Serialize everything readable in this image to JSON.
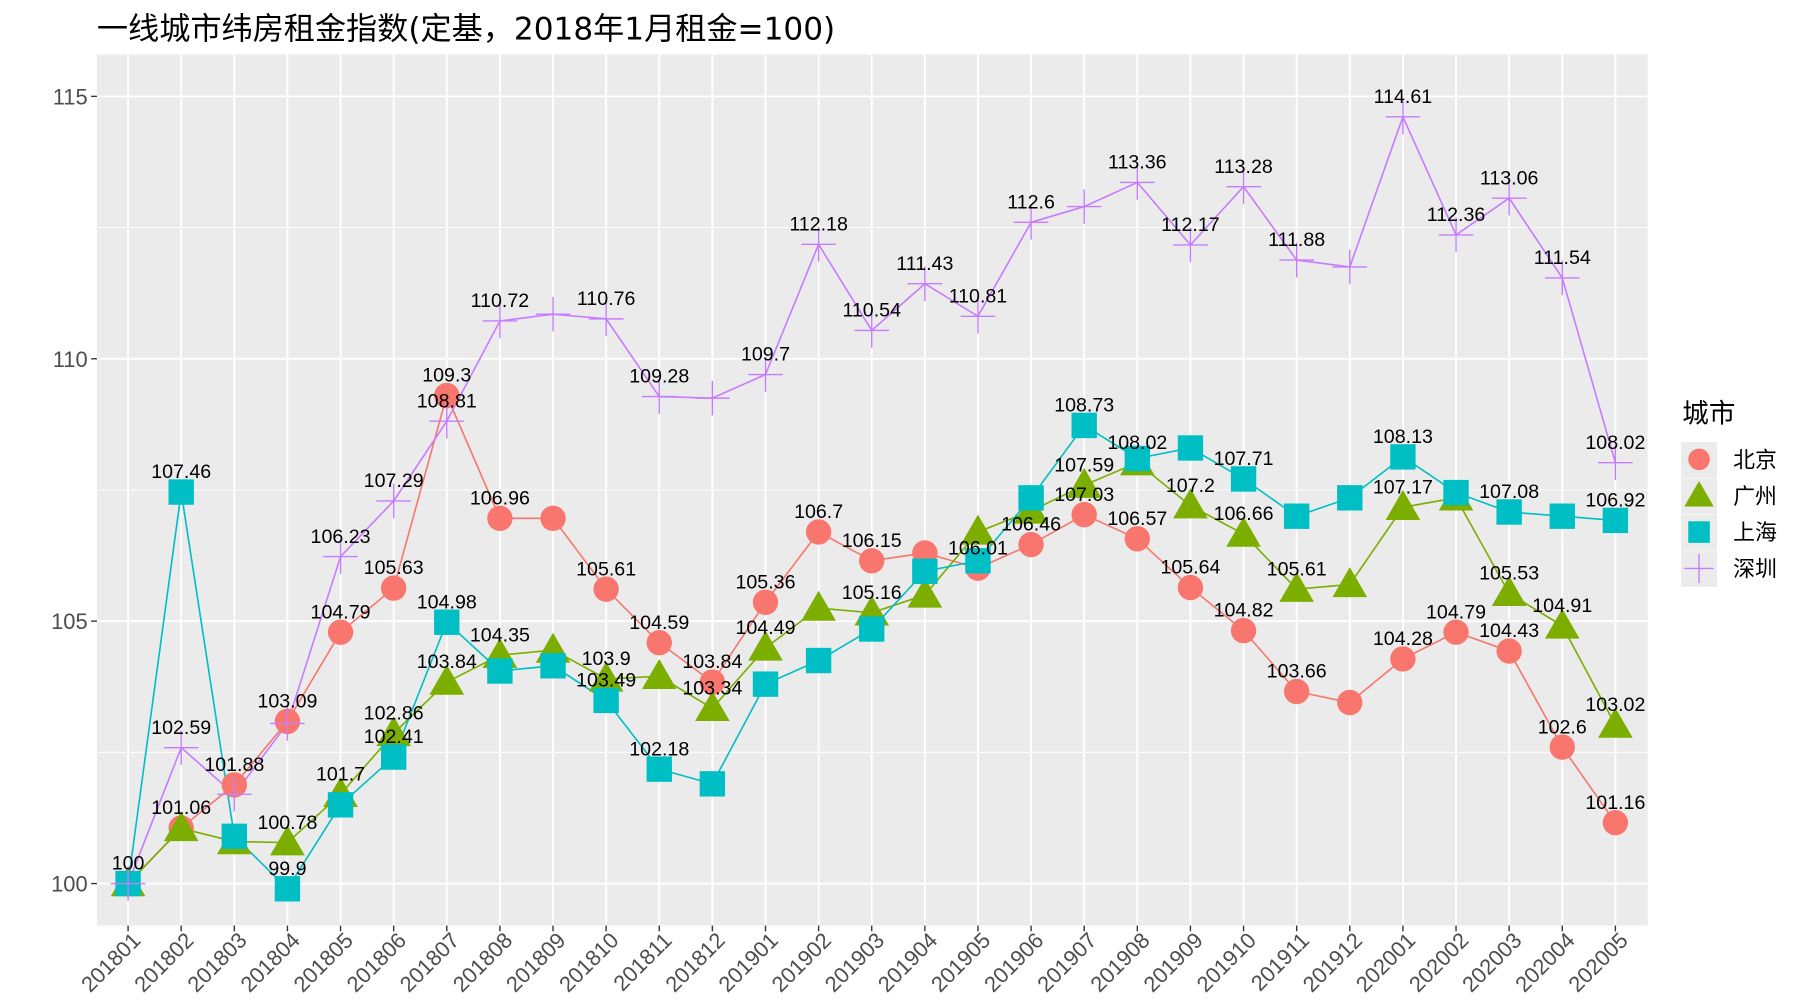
{
  "chart_data": {
    "type": "line",
    "title": "一线城市纬房租金指数(定基，2018年1月租金=100)",
    "xlabel": "",
    "ylabel": "",
    "ylim": [
      99.2,
      115.8
    ],
    "yticks": [
      100,
      105,
      110,
      115
    ],
    "grid": true,
    "legend": {
      "title": "城市",
      "position": "right"
    },
    "categories": [
      "201801",
      "201802",
      "201803",
      "201804",
      "201805",
      "201806",
      "201807",
      "201808",
      "201809",
      "201810",
      "201811",
      "201812",
      "201901",
      "201902",
      "201903",
      "201904",
      "201905",
      "201906",
      "201907",
      "201908",
      "201909",
      "201910",
      "201911",
      "201912",
      "202001",
      "202002",
      "202003",
      "202004",
      "202005"
    ],
    "series": [
      {
        "name": "北京",
        "color": "#F8766D",
        "marker": "circle",
        "values": [
          100,
          101.06,
          101.88,
          103.09,
          104.79,
          105.63,
          109.3,
          106.96,
          106.96,
          105.61,
          104.59,
          103.84,
          105.36,
          106.7,
          106.15,
          106.3,
          106.01,
          106.46,
          107.03,
          106.57,
          105.64,
          104.82,
          103.66,
          103.45,
          104.28,
          104.79,
          104.43,
          102.6,
          101.16
        ],
        "labels": [
          "",
          "101.06",
          "101.88",
          "103.09",
          "104.79",
          "105.63",
          "109.3",
          "106.96",
          "",
          "105.61",
          "104.59",
          "103.84",
          "105.36",
          "106.7",
          "106.15",
          "",
          "106.01",
          "106.46",
          "107.03",
          "106.57",
          "105.64",
          "104.82",
          "103.66",
          "",
          "104.28",
          "104.79",
          "104.43",
          "102.6",
          "101.16"
        ]
      },
      {
        "name": "广州",
        "color": "#7CAE00",
        "marker": "triangle",
        "values": [
          100,
          101.05,
          100.8,
          100.78,
          101.7,
          102.86,
          103.84,
          104.35,
          104.45,
          103.9,
          103.95,
          103.34,
          104.49,
          105.25,
          105.16,
          105.5,
          106.7,
          107.1,
          107.59,
          108.02,
          107.2,
          106.66,
          105.61,
          105.7,
          107.17,
          107.35,
          105.53,
          104.91,
          103.02
        ],
        "labels": [
          "",
          "",
          "",
          "100.78",
          "101.7",
          "102.86",
          "103.84",
          "104.35",
          "",
          "103.9",
          "",
          "103.34",
          "104.49",
          "",
          "105.16",
          "",
          "",
          "",
          "107.59",
          "108.02",
          "107.2",
          "106.66",
          "105.61",
          "",
          "107.17",
          "",
          "105.53",
          "104.91",
          "103.02"
        ]
      },
      {
        "name": "上海",
        "color": "#00BFC4",
        "marker": "square",
        "values": [
          100,
          107.46,
          100.9,
          99.9,
          101.5,
          102.41,
          104.98,
          104.05,
          104.15,
          103.49,
          102.18,
          101.9,
          103.8,
          104.25,
          104.85,
          105.95,
          106.15,
          107.35,
          108.73,
          108.1,
          108.3,
          107.71,
          107.0,
          107.35,
          108.13,
          107.45,
          107.08,
          107.0,
          106.92
        ],
        "labels": [
          "",
          "107.46",
          "",
          "99.9",
          "",
          "102.41",
          "104.98",
          "",
          "",
          "103.49",
          "102.18",
          "",
          "",
          "",
          "",
          "",
          "",
          "",
          "108.73",
          "",
          "",
          "107.71",
          "",
          "",
          "108.13",
          "",
          "107.08",
          "",
          "106.92"
        ]
      },
      {
        "name": "深圳",
        "color": "#C77CFF",
        "marker": "plus",
        "values": [
          100,
          102.59,
          101.7,
          103.05,
          106.23,
          107.29,
          108.81,
          110.72,
          110.85,
          110.76,
          109.28,
          109.25,
          109.7,
          112.18,
          110.54,
          111.43,
          110.81,
          112.6,
          112.9,
          113.36,
          112.17,
          113.28,
          111.88,
          111.75,
          114.61,
          112.36,
          113.06,
          111.54,
          108.02
        ],
        "labels": [
          "100",
          "102.59",
          "",
          "",
          "106.23",
          "107.29",
          "108.81",
          "110.72",
          "",
          "110.76",
          "109.28",
          "",
          "109.7",
          "112.18",
          "110.54",
          "111.43",
          "110.81",
          "112.6",
          "",
          "113.36",
          "112.17",
          "113.28",
          "111.88",
          "",
          "114.61",
          "112.36",
          "113.06",
          "111.54",
          "108.02"
        ]
      }
    ]
  }
}
